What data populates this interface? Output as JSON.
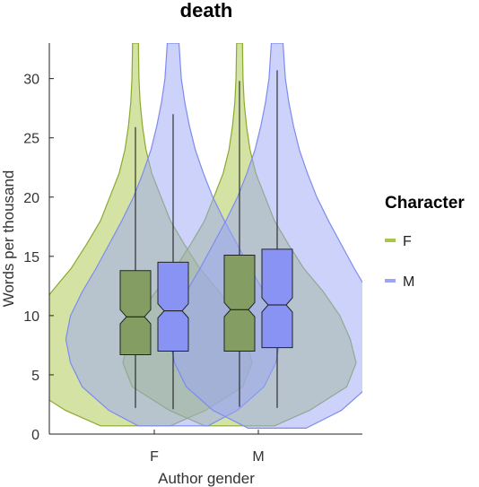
{
  "chart_data": {
    "type": "violin",
    "title": "death",
    "xlabel": "Author gender",
    "ylabel": "Words per thousand",
    "ylim": [
      0,
      33
    ],
    "yticks": [
      0,
      5,
      10,
      15,
      20,
      25,
      30
    ],
    "categories": [
      "F",
      "M"
    ],
    "legend": {
      "title": "Character",
      "position": "right",
      "entries": [
        "F",
        "M"
      ]
    },
    "colors": {
      "F_fill": "#a9c64a",
      "F_edge": "#8aaa2e",
      "M_fill": "#9aa6f5",
      "M_edge": "#7d8bf0",
      "F_box": "#849d63",
      "M_box": "#8893f3"
    },
    "series": [
      {
        "name": "F",
        "groups": [
          {
            "category": "F",
            "box": {
              "whisker_low": 2.2,
              "q1": 6.7,
              "median": 9.9,
              "q3": 13.8,
              "whisker_high": 25.9,
              "notch_low": 9.3,
              "notch_high": 10.5
            },
            "violin": [
              [
                0.7,
                0.3
              ],
              [
                2,
                0.6
              ],
              [
                4,
                0.92
              ],
              [
                6,
                1.0
              ],
              [
                8,
                0.95
              ],
              [
                10,
                0.86
              ],
              [
                12,
                0.72
              ],
              [
                14,
                0.55
              ],
              [
                16,
                0.42
              ],
              [
                18,
                0.3
              ],
              [
                20,
                0.22
              ],
              [
                22,
                0.14
              ],
              [
                24,
                0.09
              ],
              [
                26,
                0.06
              ],
              [
                28,
                0.04
              ],
              [
                30,
                0.03
              ],
              [
                33,
                0.025
              ]
            ]
          },
          {
            "category": "M",
            "box": {
              "whisker_low": 2.3,
              "q1": 7.0,
              "median": 10.5,
              "q3": 15.1,
              "whisker_high": 29.8,
              "notch_low": 9.9,
              "notch_high": 11.1
            },
            "violin": [
              [
                0.7,
                0.3
              ],
              [
                2,
                0.6
              ],
              [
                4,
                0.92
              ],
              [
                6,
                1.0
              ],
              [
                8,
                0.95
              ],
              [
                10,
                0.86
              ],
              [
                12,
                0.72
              ],
              [
                14,
                0.55
              ],
              [
                16,
                0.42
              ],
              [
                18,
                0.3
              ],
              [
                20,
                0.22
              ],
              [
                22,
                0.14
              ],
              [
                24,
                0.09
              ],
              [
                26,
                0.06
              ],
              [
                28,
                0.04
              ],
              [
                30,
                0.03
              ],
              [
                33,
                0.025
              ]
            ]
          }
        ]
      },
      {
        "name": "M",
        "groups": [
          {
            "category": "F",
            "box": {
              "whisker_low": 2.1,
              "q1": 7.0,
              "median": 10.4,
              "q3": 14.5,
              "whisker_high": 27.0,
              "notch_low": 9.8,
              "notch_high": 11.0
            },
            "violin": [
              [
                0.7,
                0.3
              ],
              [
                2,
                0.55
              ],
              [
                4,
                0.78
              ],
              [
                6,
                0.88
              ],
              [
                8,
                0.92
              ],
              [
                10,
                0.88
              ],
              [
                12,
                0.78
              ],
              [
                14,
                0.66
              ],
              [
                16,
                0.55
              ],
              [
                18,
                0.44
              ],
              [
                20,
                0.34
              ],
              [
                22,
                0.26
              ],
              [
                24,
                0.19
              ],
              [
                26,
                0.14
              ],
              [
                28,
                0.1
              ],
              [
                30,
                0.07
              ],
              [
                33,
                0.05
              ]
            ]
          },
          {
            "category": "M",
            "box": {
              "whisker_low": 2.2,
              "q1": 7.3,
              "median": 10.9,
              "q3": 15.6,
              "whisker_high": 30.7,
              "notch_low": 10.3,
              "notch_high": 11.5
            },
            "violin": [
              [
                0.5,
                0.25
              ],
              [
                2,
                0.55
              ],
              [
                4,
                0.78
              ],
              [
                6,
                0.88
              ],
              [
                8,
                0.92
              ],
              [
                10,
                0.88
              ],
              [
                12,
                0.78
              ],
              [
                14,
                0.66
              ],
              [
                16,
                0.55
              ],
              [
                18,
                0.44
              ],
              [
                20,
                0.34
              ],
              [
                22,
                0.26
              ],
              [
                24,
                0.19
              ],
              [
                26,
                0.14
              ],
              [
                28,
                0.1
              ],
              [
                30,
                0.07
              ],
              [
                33,
                0.05
              ]
            ]
          }
        ]
      }
    ]
  }
}
